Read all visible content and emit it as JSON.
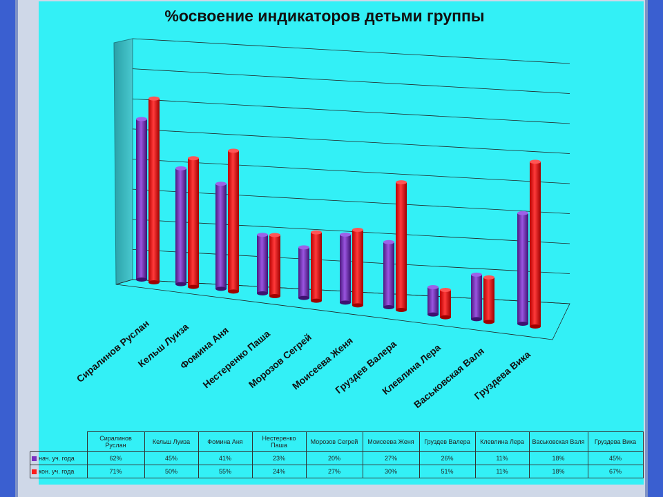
{
  "title": "%освоение  индикаторов детьми группы",
  "chart_data": {
    "type": "bar",
    "title": "%освоение  индикаторов детьми группы",
    "categories": [
      "Сиралинов Руслан",
      "Кельш Луиза",
      "Фомина Аня",
      "Нестеренко Паша",
      "Морозов Сегрей",
      "Моисеева Женя",
      "Груздев Валера",
      "Клевлина Лера",
      "Васьковская Валя",
      "Груздева Вика"
    ],
    "table_headers": [
      "Сиралинов Руслан",
      "Кельш Луиза",
      "Фомина Аня",
      "Нестеренко Паша",
      "Морозов Сегрей",
      "Моисеева Женя",
      "Груздев Валера",
      "Клевлина Лера",
      "Васьковская Валя",
      "Груздева Вика"
    ],
    "series": [
      {
        "name": "нач. уч. года",
        "color": "#7a2fc0",
        "values": [
          62,
          45,
          41,
          23,
          20,
          27,
          26,
          11,
          18,
          45
        ],
        "labels": [
          "62%",
          "45%",
          "41%",
          "23%",
          "20%",
          "27%",
          "26%",
          "11%",
          "18%",
          "45%"
        ]
      },
      {
        "name": "кон. уч. года",
        "color": "#ff1a1a",
        "values": [
          71,
          50,
          55,
          24,
          27,
          30,
          51,
          11,
          18,
          67
        ],
        "labels": [
          "71%",
          "50%",
          "55%",
          "24%",
          "27%",
          "30%",
          "51%",
          "11%",
          "18%",
          "67%"
        ]
      }
    ],
    "grid": true,
    "legend": "data-table-bottom"
  }
}
